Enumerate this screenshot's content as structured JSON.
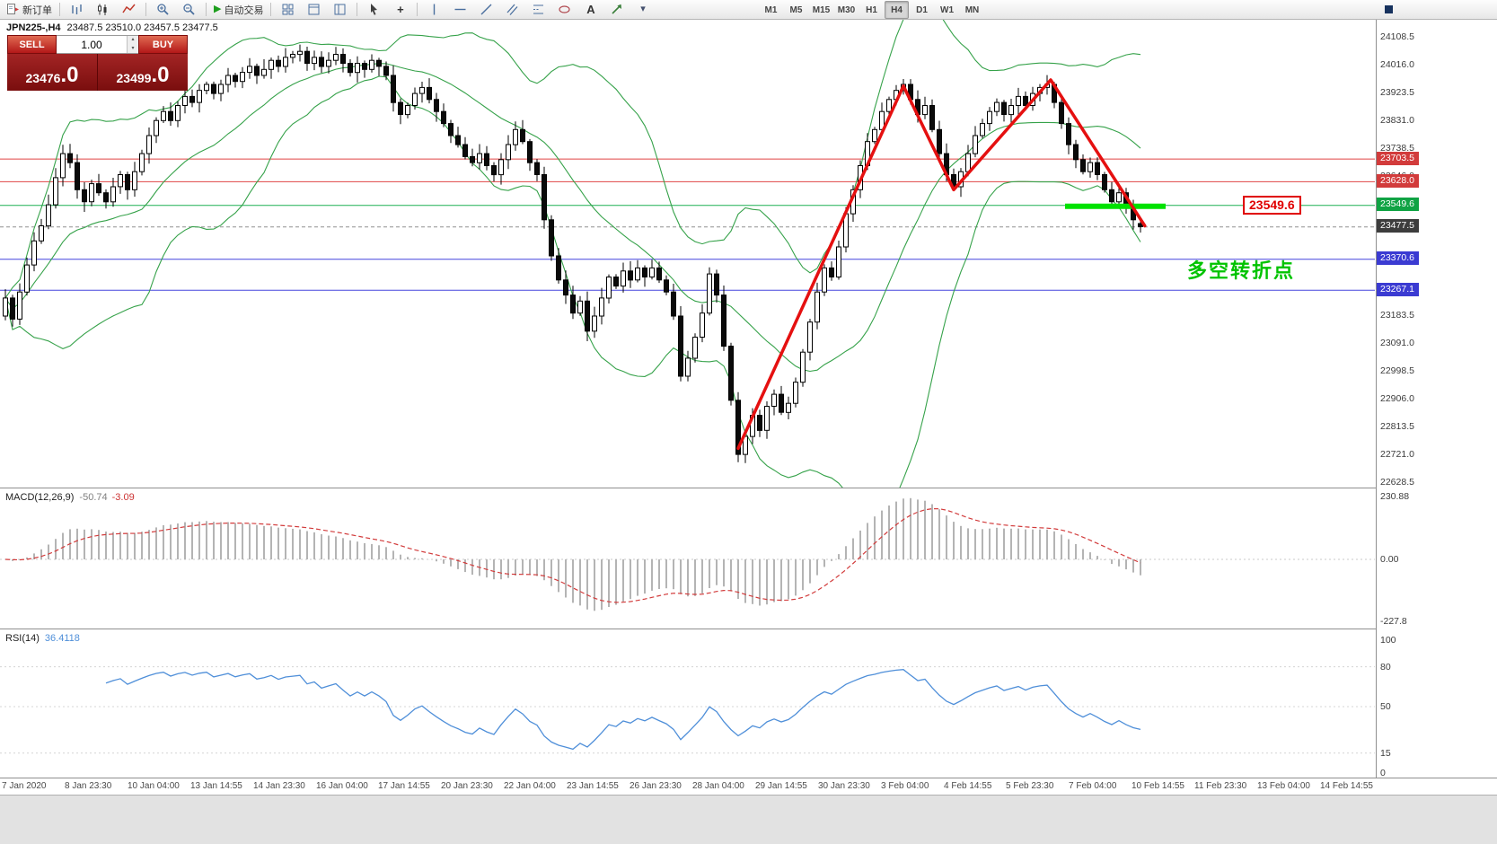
{
  "toolbar": {
    "new_order_label": "新订单",
    "autotrade_label": "自动交易",
    "timeframes": [
      "M1",
      "M5",
      "M15",
      "M30",
      "H1",
      "H4",
      "D1",
      "W1",
      "MN"
    ],
    "active_timeframe": "H4"
  },
  "icons": {
    "play": "▶",
    "crosshair": "+",
    "text_tool": "A",
    "dropdown": "▾",
    "spin_up": "▴",
    "spin_down": "▾"
  },
  "chart": {
    "title_symbol": "JPN225-,H4",
    "title_ohlc": "23487.5 23510.0 23457.5 23477.5",
    "trade": {
      "sell_label": "SELL",
      "buy_label": "BUY",
      "volume": "1.00",
      "sell_price": "23476",
      "sell_frac": ".0",
      "buy_price": "23499",
      "buy_frac": ".0"
    },
    "annotation_text": "多空转折点",
    "annotation_color": "#00c300",
    "price_callout": "23549.6"
  },
  "macd": {
    "label": "MACD(12,26,9)",
    "value_main": "-50.74",
    "value_signal": "-3.09",
    "scale": [
      "230.88",
      "0.00",
      "-227.8"
    ]
  },
  "rsi": {
    "label": "RSI(14)",
    "value": "36.4118",
    "scale": [
      "100",
      "80",
      "50",
      "15",
      "0"
    ],
    "level_lines": [
      80,
      50,
      15
    ]
  },
  "chart_data": {
    "type": "candlestick",
    "symbol": "JPN225-",
    "timeframe": "H4",
    "current": {
      "open": 23487.5,
      "high": 23510.0,
      "low": 23457.5,
      "close": 23477.5
    },
    "closes": [
      23240,
      23170,
      23260,
      23350,
      23430,
      23480,
      23550,
      23640,
      23720,
      23690,
      23600,
      23560,
      23620,
      23590,
      23560,
      23610,
      23650,
      23600,
      23660,
      23720,
      23780,
      23830,
      23860,
      23830,
      23880,
      23910,
      23890,
      23930,
      23950,
      23920,
      23950,
      23980,
      23960,
      23990,
      24010,
      23980,
      24000,
      24030,
      24010,
      24040,
      24050,
      24060,
      24020,
      24040,
      24010,
      24030,
      24050,
      24020,
      23990,
      24020,
      24000,
      24030,
      24010,
      23980,
      23890,
      23850,
      23880,
      23920,
      23940,
      23900,
      23860,
      23820,
      23780,
      23750,
      23710,
      23690,
      23720,
      23680,
      23650,
      23700,
      23750,
      23800,
      23760,
      23690,
      23650,
      23500,
      23380,
      23300,
      23250,
      23190,
      23230,
      23130,
      23180,
      23240,
      23310,
      23280,
      23330,
      23300,
      23340,
      23310,
      23340,
      23300,
      23260,
      23180,
      22980,
      23040,
      23110,
      23190,
      23320,
      23250,
      23080,
      22900,
      22720,
      22780,
      22850,
      22800,
      22880,
      22920,
      22860,
      22890,
      22960,
      23060,
      23160,
      23260,
      23340,
      23310,
      23410,
      23520,
      23600,
      23680,
      23760,
      23800,
      23860,
      23900,
      23930,
      23950,
      23900,
      23850,
      23880,
      23800,
      23720,
      23650,
      23610,
      23660,
      23720,
      23780,
      23820,
      23860,
      23890,
      23850,
      23880,
      23910,
      23880,
      23920,
      23940,
      23950,
      23890,
      23820,
      23750,
      23700,
      23660,
      23690,
      23650,
      23600,
      23560,
      23590,
      23540,
      23500,
      23477.5
    ],
    "bollinger": {
      "period": 20,
      "deviations": 2,
      "color": "#36a24a"
    },
    "price_axis_ticks": [
      24108.5,
      24016.0,
      23923.5,
      23831.0,
      23738.5,
      23646.0,
      23183.5,
      23091.0,
      22998.5,
      22906.0,
      22813.5,
      22721.0,
      22628.5
    ],
    "hlines": [
      {
        "price": 23703.5,
        "color": "#e04545",
        "style": "solid",
        "tag": "23703.5",
        "tag_bg": "#d23b3b"
      },
      {
        "price": 23628.0,
        "color": "#e04545",
        "style": "solid",
        "tag": "23628.0",
        "tag_bg": "#d23b3b"
      },
      {
        "price": 23549.6,
        "color": "#1db053",
        "style": "solid",
        "tag": "23549.6",
        "tag_bg": "#10a344"
      },
      {
        "price": 23477.5,
        "color": "#909090",
        "style": "dashed",
        "tag": "23477.5",
        "tag_bg": "#3d3d3d"
      },
      {
        "price": 23370.6,
        "color": "#4545dd",
        "style": "solid",
        "tag": "23370.6",
        "tag_bg": "#3b3bd2"
      },
      {
        "price": 23267.1,
        "color": "#4545dd",
        "style": "solid",
        "tag": "23267.1",
        "tag_bg": "#3b3bd2"
      }
    ],
    "zigzag": {
      "color": "#e51010",
      "points": [
        [
          102,
          22740
        ],
        [
          125,
          23945
        ],
        [
          132,
          23600
        ],
        [
          145.5,
          23965
        ],
        [
          158.6,
          23480
        ]
      ]
    },
    "support_segment": {
      "price": 23545,
      "from_index": 147.5,
      "to_index": 161.5,
      "color": "#00e200"
    },
    "time_labels": [
      "7 Jan 2020",
      "8 Jan 23:30",
      "10 Jan 04:00",
      "13 Jan 14:55",
      "14 Jan 23:30",
      "16 Jan 04:00",
      "17 Jan 14:55",
      "20 Jan 23:30",
      "22 Jan 04:00",
      "23 Jan 14:55",
      "26 Jan 23:30",
      "28 Jan 04:00",
      "29 Jan 14:55",
      "30 Jan 23:30",
      "3 Feb 04:00",
      "4 Feb 14:55",
      "5 Feb 23:30",
      "7 Feb 04:00",
      "10 Feb 14:55",
      "11 Feb 23:30",
      "13 Feb 04:00",
      "14 Feb 14:55"
    ]
  }
}
